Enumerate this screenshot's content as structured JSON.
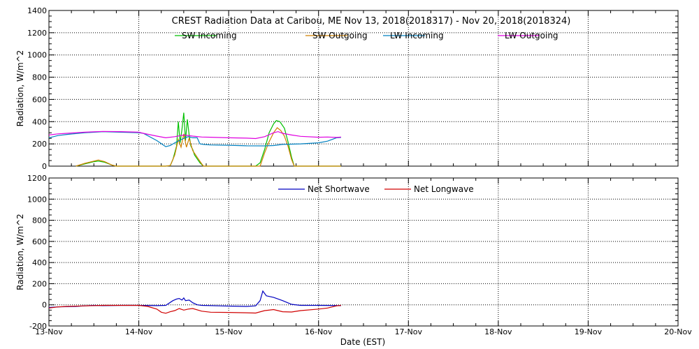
{
  "title": "CREST Radiation Data at Caribou, ME   Nov 13, 2018(2018317) - Nov 20, 2018(2018324)",
  "xlabel": "Date (EST)",
  "chart_data": [
    {
      "type": "line",
      "ylabel": "Radiation, W/m^2",
      "ylim": [
        0,
        1400
      ],
      "yticks": [
        0,
        200,
        400,
        600,
        800,
        1000,
        1200,
        1400
      ],
      "xlim": [
        0,
        7
      ],
      "x_unit": "days since Nov 13, 2018 00:00 EST",
      "xtick_labels": [
        "13-Nov",
        "14-Nov",
        "15-Nov",
        "16-Nov",
        "17-Nov",
        "18-Nov",
        "19-Nov",
        "20-Nov"
      ],
      "grid": true,
      "legend": "top",
      "series": [
        {
          "name": "SW Incoming",
          "color": "#00c000",
          "points": [
            [
              0.3,
              0
            ],
            [
              0.4,
              20
            ],
            [
              0.5,
              40
            ],
            [
              0.55,
              45
            ],
            [
              0.62,
              35
            ],
            [
              0.7,
              10
            ],
            [
              0.75,
              0
            ],
            [
              1.0,
              0
            ],
            [
              1.3,
              0
            ],
            [
              1.35,
              5
            ],
            [
              1.38,
              60
            ],
            [
              1.42,
              180
            ],
            [
              1.44,
              400
            ],
            [
              1.46,
              210
            ],
            [
              1.48,
              330
            ],
            [
              1.5,
              480
            ],
            [
              1.52,
              230
            ],
            [
              1.54,
              420
            ],
            [
              1.56,
              280
            ],
            [
              1.58,
              180
            ],
            [
              1.6,
              150
            ],
            [
              1.62,
              100
            ],
            [
              1.68,
              30
            ],
            [
              1.72,
              0
            ],
            [
              2.3,
              0
            ],
            [
              2.35,
              30
            ],
            [
              2.4,
              150
            ],
            [
              2.45,
              300
            ],
            [
              2.5,
              380
            ],
            [
              2.53,
              410
            ],
            [
              2.57,
              400
            ],
            [
              2.62,
              340
            ],
            [
              2.66,
              220
            ],
            [
              2.7,
              80
            ],
            [
              2.73,
              0
            ],
            [
              3.25,
              0
            ]
          ]
        },
        {
          "name": "SW Outgoing",
          "color": "#d08000",
          "points": [
            [
              0.3,
              0
            ],
            [
              0.4,
              25
            ],
            [
              0.5,
              45
            ],
            [
              0.55,
              55
            ],
            [
              0.62,
              40
            ],
            [
              0.7,
              10
            ],
            [
              0.75,
              0
            ],
            [
              1.3,
              0
            ],
            [
              1.35,
              5
            ],
            [
              1.4,
              100
            ],
            [
              1.44,
              240
            ],
            [
              1.47,
              170
            ],
            [
              1.5,
              290
            ],
            [
              1.53,
              170
            ],
            [
              1.56,
              250
            ],
            [
              1.6,
              140
            ],
            [
              1.65,
              80
            ],
            [
              1.7,
              20
            ],
            [
              1.72,
              0
            ],
            [
              2.35,
              0
            ],
            [
              2.4,
              120
            ],
            [
              2.45,
              220
            ],
            [
              2.5,
              300
            ],
            [
              2.54,
              345
            ],
            [
              2.58,
              320
            ],
            [
              2.62,
              270
            ],
            [
              2.66,
              180
            ],
            [
              2.7,
              60
            ],
            [
              2.73,
              0
            ],
            [
              3.25,
              0
            ]
          ]
        },
        {
          "name": "LW Incoming",
          "color": "#0080c0",
          "points": [
            [
              0,
              255
            ],
            [
              0.1,
              275
            ],
            [
              0.2,
              285
            ],
            [
              0.4,
              300
            ],
            [
              0.6,
              310
            ],
            [
              0.8,
              305
            ],
            [
              1.0,
              300
            ],
            [
              1.05,
              295
            ],
            [
              1.2,
              230
            ],
            [
              1.3,
              175
            ],
            [
              1.35,
              185
            ],
            [
              1.4,
              210
            ],
            [
              1.45,
              230
            ],
            [
              1.5,
              250
            ],
            [
              1.55,
              265
            ],
            [
              1.6,
              255
            ],
            [
              1.65,
              255
            ],
            [
              1.68,
              200
            ],
            [
              1.72,
              195
            ],
            [
              1.8,
              190
            ],
            [
              2.0,
              188
            ],
            [
              2.2,
              183
            ],
            [
              2.4,
              182
            ],
            [
              2.5,
              185
            ],
            [
              2.6,
              195
            ],
            [
              2.8,
              200
            ],
            [
              3.0,
              210
            ],
            [
              3.1,
              225
            ],
            [
              3.2,
              255
            ],
            [
              3.25,
              258
            ]
          ]
        },
        {
          "name": "LW Outgoing",
          "color": "#e000e0",
          "points": [
            [
              0,
              280
            ],
            [
              0.1,
              290
            ],
            [
              0.2,
              295
            ],
            [
              0.4,
              305
            ],
            [
              0.6,
              312
            ],
            [
              0.8,
              310
            ],
            [
              1.0,
              305
            ],
            [
              1.05,
              295
            ],
            [
              1.2,
              270
            ],
            [
              1.3,
              255
            ],
            [
              1.4,
              265
            ],
            [
              1.5,
              280
            ],
            [
              1.6,
              270
            ],
            [
              1.7,
              262
            ],
            [
              1.8,
              260
            ],
            [
              2.0,
              255
            ],
            [
              2.2,
              252
            ],
            [
              2.3,
              248
            ],
            [
              2.4,
              265
            ],
            [
              2.5,
              300
            ],
            [
              2.55,
              310
            ],
            [
              2.6,
              295
            ],
            [
              2.7,
              280
            ],
            [
              2.8,
              268
            ],
            [
              3.0,
              260
            ],
            [
              3.1,
              262
            ],
            [
              3.2,
              258
            ],
            [
              3.25,
              262
            ]
          ]
        }
      ]
    },
    {
      "type": "line",
      "ylabel": "Radiation, W/m^2",
      "ylim": [
        -200,
        1200
      ],
      "yticks": [
        -200,
        0,
        200,
        400,
        600,
        800,
        1000,
        1200
      ],
      "xlim": [
        0,
        7
      ],
      "x_unit": "days since Nov 13, 2018 00:00 EST",
      "xtick_labels": [
        "13-Nov",
        "14-Nov",
        "15-Nov",
        "16-Nov",
        "17-Nov",
        "18-Nov",
        "19-Nov",
        "20-Nov"
      ],
      "grid": true,
      "legend": "top",
      "series": [
        {
          "name": "Net Shortwave",
          "color": "#0000c0",
          "points": [
            [
              0,
              -25
            ],
            [
              0.1,
              -20
            ],
            [
              0.3,
              -15
            ],
            [
              0.4,
              -10
            ],
            [
              0.5,
              -5
            ],
            [
              0.6,
              -8
            ],
            [
              0.8,
              -5
            ],
            [
              1.0,
              -5
            ],
            [
              1.2,
              -8
            ],
            [
              1.3,
              -5
            ],
            [
              1.38,
              40
            ],
            [
              1.42,
              55
            ],
            [
              1.45,
              60
            ],
            [
              1.48,
              45
            ],
            [
              1.5,
              65
            ],
            [
              1.52,
              40
            ],
            [
              1.56,
              45
            ],
            [
              1.6,
              20
            ],
            [
              1.65,
              0
            ],
            [
              1.7,
              -5
            ],
            [
              1.9,
              -10
            ],
            [
              2.0,
              -12
            ],
            [
              2.2,
              -15
            ],
            [
              2.3,
              -10
            ],
            [
              2.35,
              40
            ],
            [
              2.38,
              130
            ],
            [
              2.42,
              85
            ],
            [
              2.5,
              70
            ],
            [
              2.6,
              40
            ],
            [
              2.7,
              5
            ],
            [
              2.8,
              -5
            ],
            [
              3.0,
              -5
            ],
            [
              3.25,
              -8
            ]
          ]
        },
        {
          "name": "Net Longwave",
          "color": "#d00000",
          "points": [
            [
              0,
              -30
            ],
            [
              0.1,
              -20
            ],
            [
              0.2,
              -15
            ],
            [
              0.4,
              -10
            ],
            [
              0.6,
              -5
            ],
            [
              0.8,
              -5
            ],
            [
              1.0,
              -5
            ],
            [
              1.1,
              -15
            ],
            [
              1.2,
              -40
            ],
            [
              1.25,
              -70
            ],
            [
              1.3,
              -80
            ],
            [
              1.35,
              -65
            ],
            [
              1.4,
              -55
            ],
            [
              1.45,
              -35
            ],
            [
              1.5,
              -50
            ],
            [
              1.55,
              -40
            ],
            [
              1.6,
              -35
            ],
            [
              1.7,
              -60
            ],
            [
              1.8,
              -70
            ],
            [
              2.0,
              -72
            ],
            [
              2.2,
              -75
            ],
            [
              2.3,
              -78
            ],
            [
              2.4,
              -55
            ],
            [
              2.5,
              -45
            ],
            [
              2.6,
              -65
            ],
            [
              2.7,
              -68
            ],
            [
              2.8,
              -55
            ],
            [
              3.0,
              -40
            ],
            [
              3.1,
              -30
            ],
            [
              3.2,
              -10
            ],
            [
              3.25,
              -5
            ]
          ]
        }
      ]
    }
  ]
}
